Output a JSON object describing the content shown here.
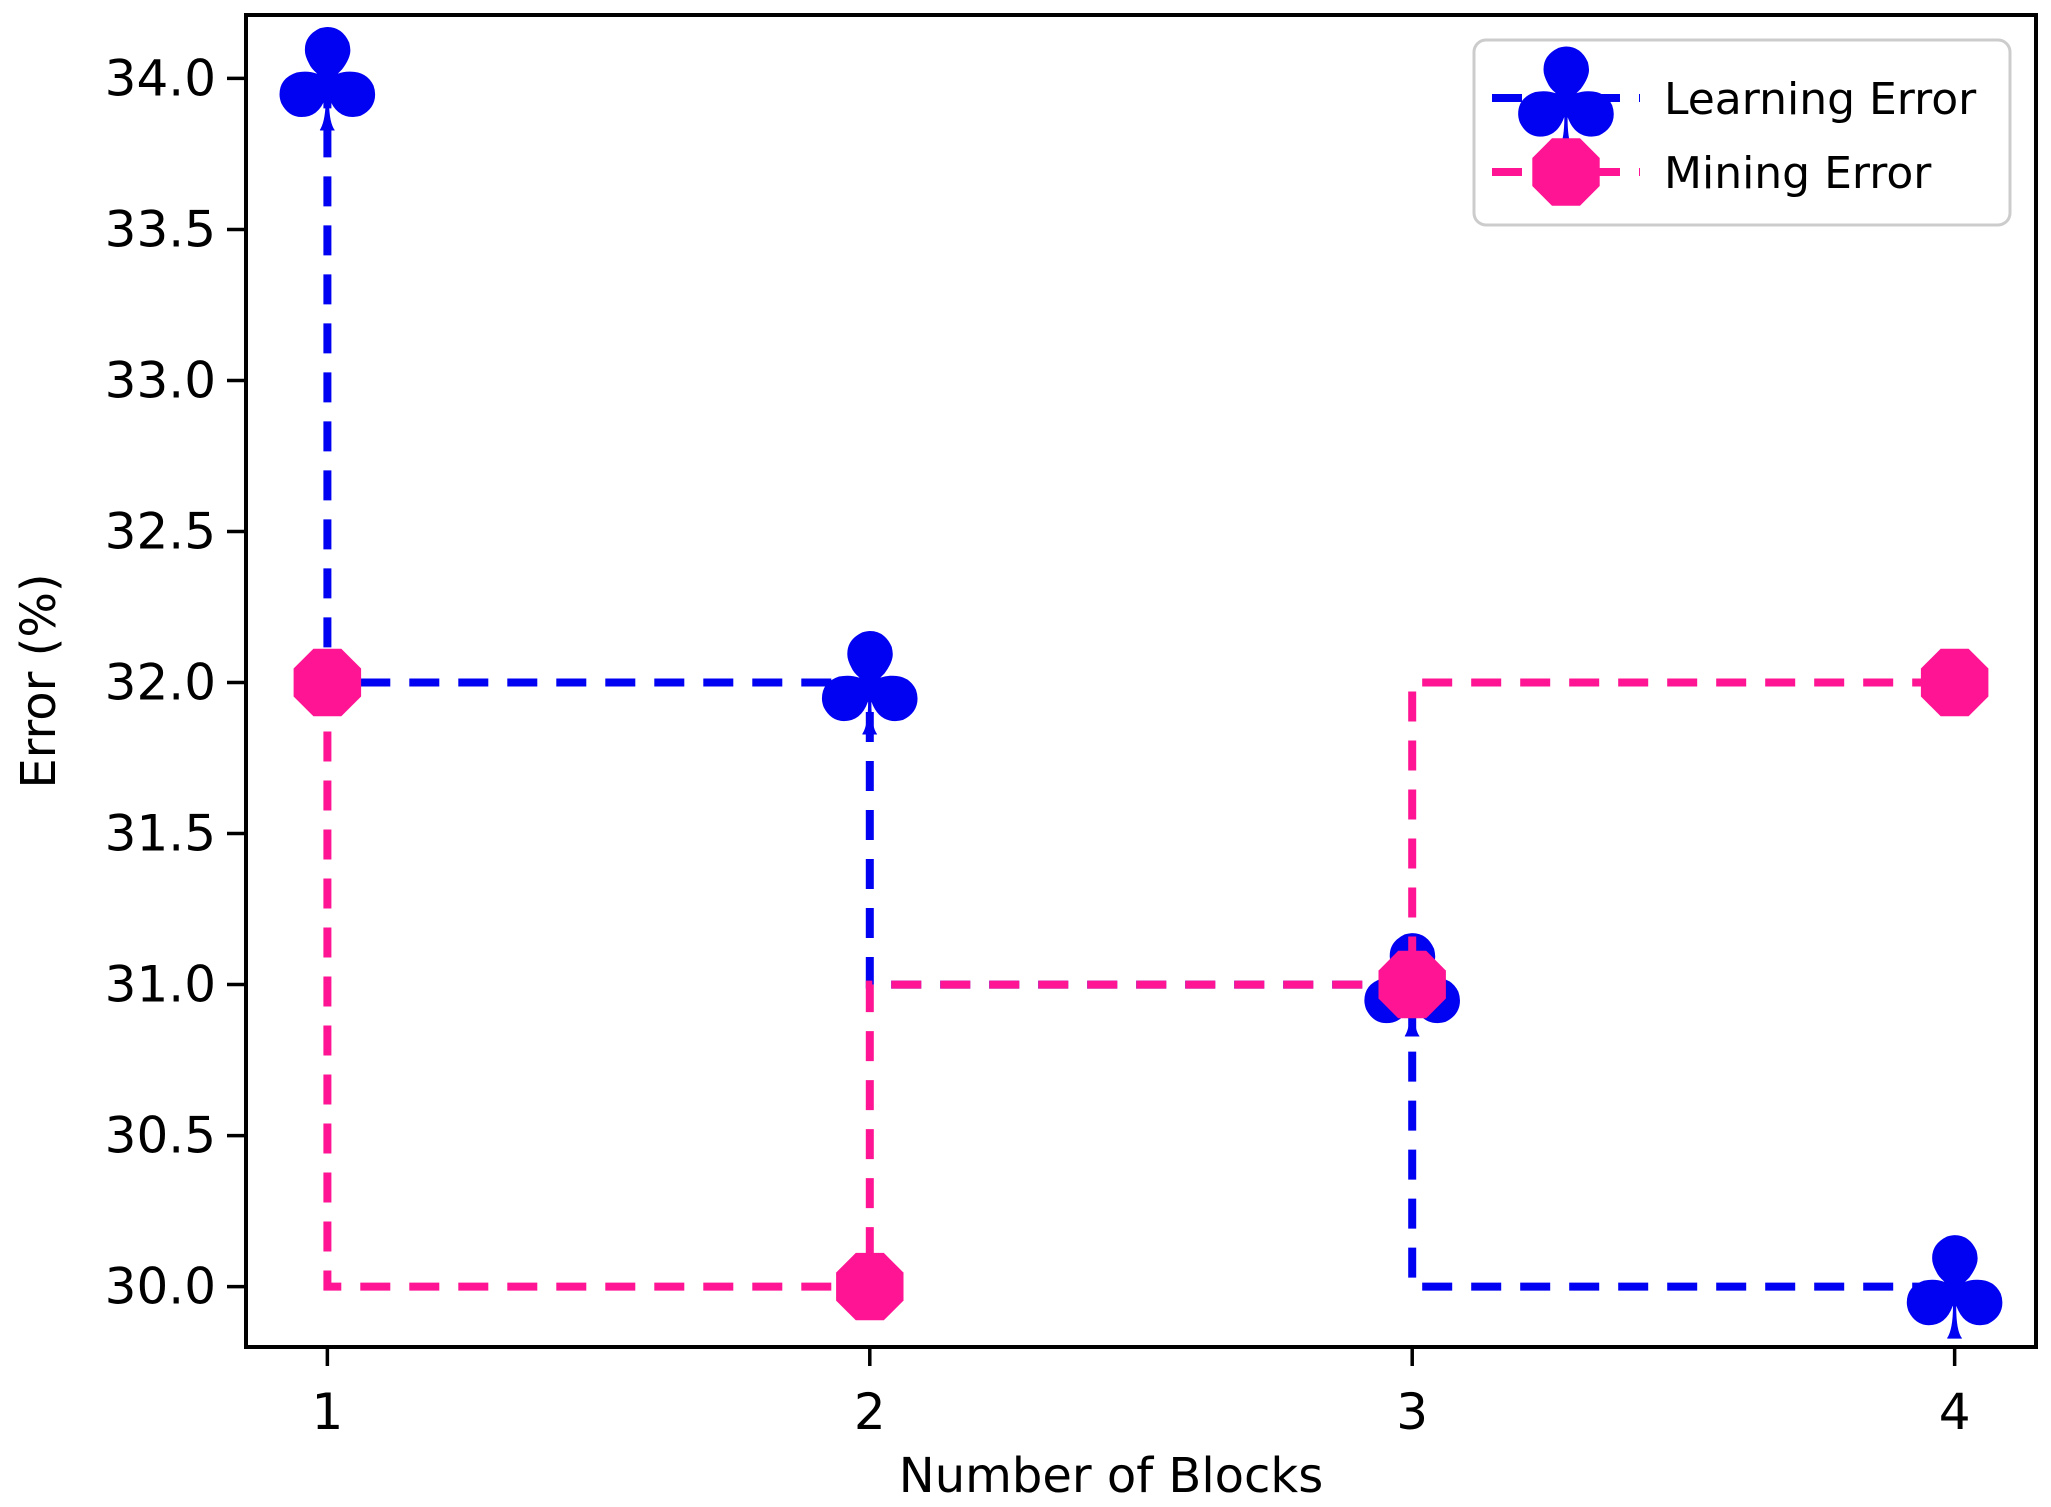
{
  "chart_data": {
    "type": "line",
    "subtype": "step-dashed",
    "title": "",
    "xlabel": "Number of Blocks",
    "ylabel": "Error (%)",
    "x": [
      1,
      2,
      3,
      4
    ],
    "series": [
      {
        "name": "Learning Error",
        "values": [
          34.0,
          32.0,
          31.0,
          30.0
        ],
        "color": "#0202f2",
        "marker": "club",
        "linestyle": "dashed",
        "drawstyle": "steps-pre"
      },
      {
        "name": "Mining Error",
        "values": [
          32.0,
          30.0,
          31.0,
          32.0
        ],
        "color": "#ff1493",
        "marker": "octagon",
        "linestyle": "dashed",
        "drawstyle": "steps-pre"
      }
    ],
    "xticks": [
      1,
      2,
      3,
      4
    ],
    "xtick_labels": [
      "1",
      "2",
      "3",
      "4"
    ],
    "yticks": [
      30.0,
      30.5,
      31.0,
      31.5,
      32.0,
      32.5,
      33.0,
      33.5,
      34.0
    ],
    "ytick_labels": [
      "30.0",
      "30.5",
      "31.0",
      "31.5",
      "32.0",
      "32.5",
      "33.0",
      "33.5",
      "34.0"
    ],
    "xlim": [
      0.85,
      4.15
    ],
    "ylim": [
      29.8,
      34.21
    ],
    "grid": false,
    "legend_position": "upper right",
    "legend_entries": [
      "Learning Error",
      "Mining Error"
    ],
    "colors": {
      "axis": "#000000",
      "tick_text": "#000000",
      "legend_border": "#cccccc",
      "legend_background": "#ffffff",
      "plot_background": "#ffffff"
    }
  }
}
